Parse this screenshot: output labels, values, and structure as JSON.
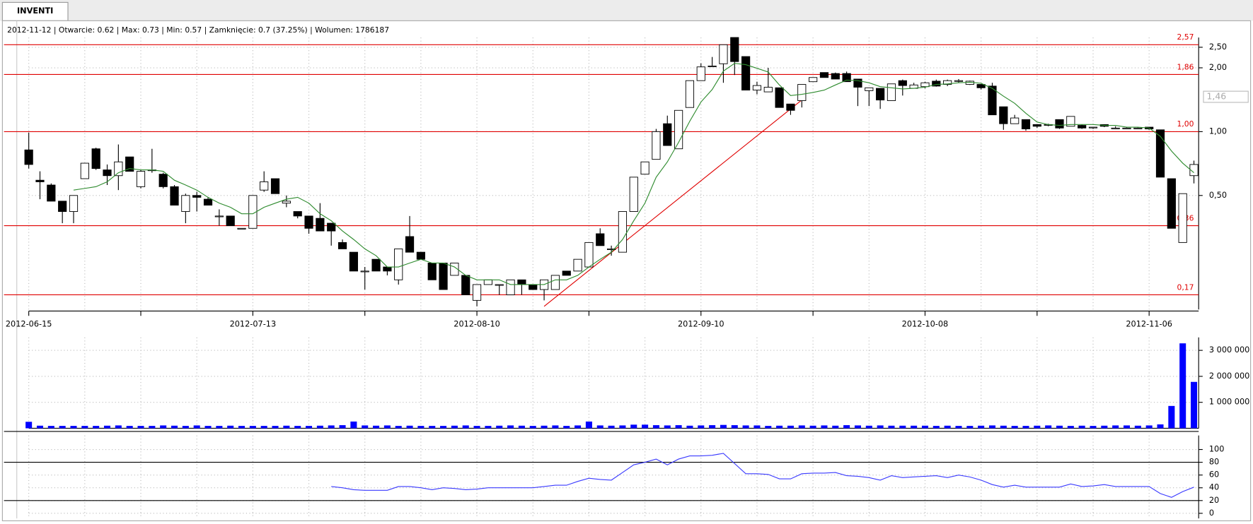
{
  "tab": "INVENTI",
  "info": "2012-11-12 | Otwarcie: 0.62 | Max: 0.73 | Min: 0.57 | Zamknięcie: 0.7 (37.25%) | Wolumen: 1786187",
  "chart_data": [
    {
      "type": "candlestick",
      "categories": [
        "2012-06-15",
        null,
        null,
        null,
        null,
        null,
        null,
        null,
        null,
        null,
        null,
        null,
        null,
        null,
        null,
        null,
        null,
        null,
        null,
        null,
        "2012-07-13",
        null,
        null,
        null,
        null,
        null,
        null,
        null,
        null,
        null,
        null,
        null,
        null,
        null,
        null,
        null,
        null,
        null,
        null,
        null,
        "2012-08-10",
        null,
        null,
        null,
        null,
        null,
        null,
        null,
        null,
        null,
        null,
        null,
        null,
        null,
        null,
        null,
        null,
        null,
        null,
        null,
        "2012-09-10",
        null,
        null,
        null,
        null,
        null,
        null,
        null,
        null,
        null,
        null,
        null,
        null,
        null,
        null,
        null,
        null,
        null,
        null,
        null,
        "2012-10-08",
        null,
        null,
        null,
        null,
        null,
        null,
        null,
        null,
        null,
        null,
        null,
        null,
        null,
        null,
        null,
        null,
        null,
        null,
        null,
        "2012-11-06",
        null,
        null,
        null,
        null
      ],
      "open": [
        0.82,
        0.59,
        0.56,
        0.47,
        0.42,
        0.6,
        0.83,
        0.66,
        0.62,
        0.76,
        0.55,
        0.66,
        0.63,
        0.55,
        0.42,
        0.5,
        0.48,
        0.4,
        0.4,
        0.35,
        0.35,
        0.53,
        0.6,
        0.46,
        0.42,
        0.4,
        0.39,
        0.37,
        0.3,
        0.27,
        0.22,
        0.25,
        0.23,
        0.2,
        0.32,
        0.27,
        0.24,
        0.24,
        0.21,
        0.21,
        0.16,
        0.19,
        0.19,
        0.17,
        0.2,
        0.19,
        0.18,
        0.18,
        0.22,
        0.22,
        0.23,
        0.33,
        0.28,
        0.27,
        0.42,
        0.63,
        0.74,
        1.09,
        0.83,
        1.3,
        1.74,
        2.04,
        2.09,
        2.78,
        2.26,
        1.57,
        1.54,
        1.61,
        1.35,
        1.4,
        1.72,
        1.9,
        1.88,
        1.88,
        1.77,
        1.56,
        1.6,
        1.4,
        1.74,
        1.6,
        1.63,
        1.73,
        1.67,
        1.74,
        1.67,
        1.67,
        1.64,
        1.31,
        1.09,
        1.14,
        1.08,
        1.08,
        1.14,
        1.06,
        1.07,
        1.05,
        1.08,
        1.04,
        1.04,
        1.04,
        1.05,
        1.02,
        0.6,
        0.3,
        0.62
      ],
      "high": [
        0.99,
        0.65,
        0.57,
        0.47,
        0.5,
        0.71,
        0.84,
        0.7,
        0.87,
        0.76,
        0.66,
        0.83,
        0.64,
        0.56,
        0.51,
        0.52,
        0.49,
        0.43,
        0.4,
        0.35,
        0.5,
        0.65,
        0.6,
        0.5,
        0.42,
        0.4,
        0.46,
        0.37,
        0.31,
        0.27,
        0.23,
        0.25,
        0.23,
        0.28,
        0.4,
        0.27,
        0.24,
        0.24,
        0.24,
        0.21,
        0.19,
        0.2,
        0.19,
        0.2,
        0.2,
        0.19,
        0.2,
        0.21,
        0.22,
        0.25,
        0.3,
        0.35,
        0.29,
        0.42,
        0.61,
        0.72,
        1.03,
        1.19,
        1.26,
        1.74,
        2.1,
        2.25,
        2.57,
        2.78,
        2.26,
        1.72,
        2.0,
        1.61,
        1.35,
        1.67,
        1.8,
        1.9,
        1.9,
        1.92,
        1.77,
        1.61,
        1.6,
        1.68,
        1.76,
        1.7,
        1.72,
        1.76,
        1.76,
        1.77,
        1.74,
        1.67,
        1.7,
        1.31,
        1.2,
        1.14,
        1.08,
        1.09,
        1.14,
        1.18,
        1.08,
        1.05,
        1.08,
        1.06,
        1.05,
        1.05,
        1.05,
        1.02,
        0.6,
        0.51,
        0.73
      ],
      "low": [
        0.67,
        0.48,
        0.47,
        0.37,
        0.37,
        0.6,
        0.66,
        0.56,
        0.53,
        0.65,
        0.54,
        0.64,
        0.54,
        0.45,
        0.37,
        0.42,
        0.45,
        0.36,
        0.36,
        0.35,
        0.35,
        0.52,
        0.51,
        0.44,
        0.39,
        0.33,
        0.34,
        0.29,
        0.28,
        0.22,
        0.18,
        0.22,
        0.21,
        0.19,
        0.27,
        0.25,
        0.2,
        0.18,
        0.21,
        0.17,
        0.15,
        0.19,
        0.17,
        0.17,
        0.17,
        0.18,
        0.16,
        0.18,
        0.21,
        0.22,
        0.23,
        0.29,
        0.26,
        0.27,
        0.42,
        0.63,
        0.74,
        0.86,
        0.83,
        1.3,
        1.74,
        2.04,
        1.7,
        1.85,
        1.57,
        1.5,
        1.54,
        1.3,
        1.2,
        1.3,
        1.72,
        1.8,
        1.77,
        1.72,
        1.32,
        1.32,
        1.28,
        1.4,
        1.48,
        1.6,
        1.6,
        1.63,
        1.64,
        1.7,
        1.66,
        1.58,
        1.2,
        1.02,
        1.09,
        1.01,
        1.04,
        1.06,
        1.03,
        1.06,
        1.03,
        1.03,
        1.05,
        1.03,
        1.04,
        1.03,
        1.02,
        0.61,
        0.35,
        0.3,
        0.57
      ],
      "close": [
        0.7,
        0.58,
        0.47,
        0.42,
        0.5,
        0.71,
        0.67,
        0.62,
        0.72,
        0.65,
        0.65,
        0.66,
        0.55,
        0.45,
        0.5,
        0.49,
        0.45,
        0.4,
        0.36,
        0.35,
        0.5,
        0.58,
        0.51,
        0.47,
        0.4,
        0.35,
        0.34,
        0.34,
        0.28,
        0.22,
        0.22,
        0.22,
        0.22,
        0.28,
        0.27,
        0.25,
        0.2,
        0.18,
        0.24,
        0.17,
        0.19,
        0.2,
        0.19,
        0.2,
        0.19,
        0.18,
        0.2,
        0.21,
        0.21,
        0.25,
        0.3,
        0.29,
        0.28,
        0.42,
        0.61,
        0.72,
        1.0,
        0.86,
        1.26,
        1.74,
        2.02,
        2.04,
        2.57,
        2.14,
        1.57,
        1.65,
        1.62,
        1.3,
        1.26,
        1.67,
        1.8,
        1.8,
        1.77,
        1.72,
        1.62,
        1.61,
        1.41,
        1.68,
        1.65,
        1.66,
        1.7,
        1.64,
        1.74,
        1.74,
        1.73,
        1.61,
        1.2,
        1.09,
        1.16,
        1.03,
        1.06,
        1.08,
        1.04,
        1.18,
        1.04,
        1.05,
        1.06,
        1.04,
        1.04,
        1.04,
        1.03,
        0.61,
        0.35,
        0.51,
        0.7
      ],
      "ma": [
        null,
        null,
        null,
        null,
        0.53,
        0.54,
        0.55,
        0.58,
        0.64,
        0.67,
        0.66,
        0.66,
        0.65,
        0.59,
        0.56,
        0.53,
        0.49,
        0.46,
        0.44,
        0.41,
        0.41,
        0.44,
        0.46,
        0.48,
        0.49,
        0.46,
        0.41,
        0.38,
        0.34,
        0.31,
        0.28,
        0.26,
        0.23,
        0.23,
        0.24,
        0.25,
        0.24,
        0.24,
        0.23,
        0.21,
        0.2,
        0.2,
        0.2,
        0.19,
        0.19,
        0.19,
        0.19,
        0.2,
        0.2,
        0.21,
        0.23,
        0.25,
        0.27,
        0.31,
        0.38,
        0.46,
        0.61,
        0.72,
        0.89,
        1.12,
        1.38,
        1.58,
        1.93,
        2.1,
        2.07,
        1.99,
        1.91,
        1.66,
        1.48,
        1.5,
        1.53,
        1.57,
        1.66,
        1.75,
        1.74,
        1.7,
        1.63,
        1.61,
        1.59,
        1.6,
        1.62,
        1.67,
        1.68,
        1.7,
        1.71,
        1.69,
        1.6,
        1.47,
        1.36,
        1.22,
        1.11,
        1.08,
        1.07,
        1.08,
        1.08,
        1.08,
        1.07,
        1.07,
        1.05,
        1.05,
        1.04,
        0.95,
        0.81,
        0.71,
        0.64
      ],
      "ma_color": "#2e8b2e",
      "log": true,
      "ylim": [
        0.145,
        2.78
      ],
      "yticks": [
        {
          "value": 2.5,
          "label": "2,50"
        },
        {
          "value": 2,
          "label": "2,00"
        },
        {
          "value": 1,
          "label": "1,00"
        },
        {
          "value": 0.5,
          "label": "0,50"
        }
      ],
      "levels": [
        {
          "value": 2.57,
          "label": "2,57"
        },
        {
          "value": 1.86,
          "label": "1,86"
        },
        {
          "value": 1,
          "label": "1,00"
        },
        {
          "value": 0.36,
          "label": "0,36"
        },
        {
          "value": 0.17,
          "label": "0,17"
        }
      ],
      "level_color": "#e00000",
      "marker": {
        "value": 1.46,
        "label": "1,46"
      },
      "trendline": {
        "from": [
          46,
          0.15
        ],
        "to": [
          69,
          1.41
        ]
      }
    },
    {
      "type": "bar",
      "values": [
        250000,
        100000,
        90000,
        80000,
        60000,
        70000,
        90000,
        100000,
        110000,
        90000,
        80000,
        90000,
        110000,
        100000,
        90000,
        110000,
        90000,
        80000,
        100000,
        70000,
        90000,
        80000,
        90000,
        100000,
        90000,
        90000,
        100000,
        110000,
        120000,
        260000,
        110000,
        100000,
        110000,
        90000,
        100000,
        90000,
        80000,
        90000,
        100000,
        110000,
        90000,
        90000,
        100000,
        110000,
        100000,
        90000,
        100000,
        110000,
        90000,
        110000,
        260000,
        110000,
        100000,
        110000,
        140000,
        140000,
        120000,
        110000,
        120000,
        100000,
        110000,
        120000,
        130000,
        120000,
        110000,
        110000,
        90000,
        100000,
        100000,
        110000,
        100000,
        110000,
        100000,
        120000,
        110000,
        100000,
        110000,
        100000,
        100000,
        100000,
        100000,
        90000,
        100000,
        90000,
        90000,
        100000,
        110000,
        100000,
        90000,
        80000,
        100000,
        110000,
        100000,
        90000,
        100000,
        90000,
        100000,
        110000,
        110000,
        100000,
        110000,
        150000,
        860000,
        3270000,
        1786187
      ],
      "color": "#0000ff",
      "ylim": [
        0,
        3500000
      ],
      "yticks": [
        {
          "value": 1000000,
          "label": "1 000 000"
        },
        {
          "value": 2000000,
          "label": "2 000 000"
        },
        {
          "value": 3000000,
          "label": "3 000 000"
        }
      ]
    },
    {
      "type": "line",
      "values": [
        null,
        null,
        null,
        null,
        null,
        null,
        null,
        null,
        null,
        null,
        null,
        null,
        null,
        null,
        null,
        null,
        null,
        null,
        null,
        null,
        null,
        null,
        null,
        null,
        null,
        null,
        null,
        42,
        40,
        37,
        36,
        36,
        36,
        42,
        42,
        40,
        37,
        40,
        39,
        37,
        38,
        40,
        40,
        40,
        40,
        40,
        42,
        44,
        44,
        50,
        55,
        53,
        52,
        64,
        76,
        80,
        85,
        76,
        85,
        90,
        90,
        91,
        94,
        78,
        62,
        62,
        61,
        54,
        54,
        62,
        63,
        63,
        64,
        59,
        58,
        56,
        52,
        59,
        56,
        57,
        58,
        59,
        56,
        60,
        57,
        52,
        45,
        41,
        44,
        41,
        41,
        41,
        41,
        46,
        42,
        43,
        45,
        42,
        42,
        42,
        42,
        31,
        25,
        34,
        41
      ],
      "color": "#3a3aff",
      "ylim": [
        -8,
        122
      ],
      "yticks": [
        0,
        20,
        40,
        60,
        80,
        100
      ],
      "hlines": [
        20,
        80
      ]
    }
  ]
}
